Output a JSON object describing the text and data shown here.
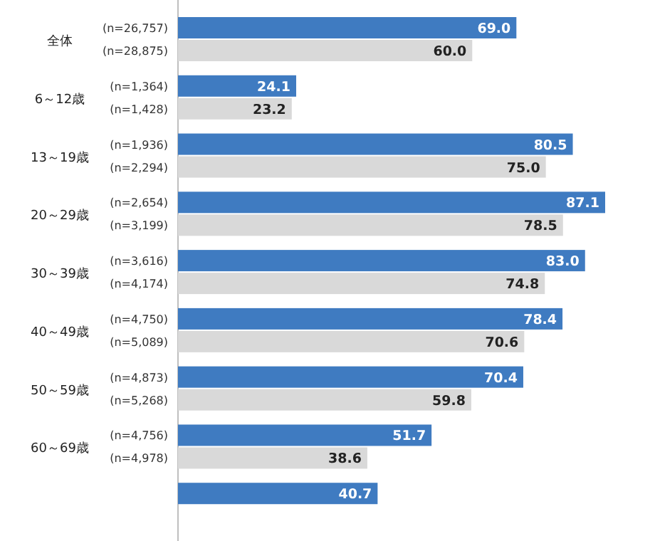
{
  "chart_data": {
    "type": "bar",
    "orientation": "horizontal",
    "categories": [
      "全体",
      "6～12歳",
      "13～19歳",
      "20～29歳",
      "30～39歳",
      "40～49歳",
      "50～59歳",
      "60～69歳",
      null
    ],
    "series": [
      {
        "color": "#3f7bc1",
        "values": [
          69.0,
          24.1,
          80.5,
          87.1,
          83.0,
          78.4,
          70.4,
          51.7,
          40.7
        ],
        "value_labels": [
          "69.0",
          "24.1",
          "80.5",
          "87.1",
          "83.0",
          "78.4",
          "70.4",
          "51.7",
          "40.7"
        ]
      },
      {
        "color": "#d9d9d9",
        "values": [
          60.0,
          23.2,
          75.0,
          78.5,
          74.8,
          70.6,
          59.8,
          38.6,
          null
        ],
        "value_labels": [
          "60.0",
          "23.2",
          "75.0",
          "78.5",
          "74.8",
          "70.6",
          "59.8",
          "38.6",
          null
        ]
      }
    ],
    "annotations": [
      "(n=26,757)",
      "(n=28,875)",
      "(n=1,364)",
      "(n=1,428)",
      "(n=1,936)",
      "(n=2,294)",
      "(n=2,654)",
      "(n=3,199)",
      "(n=3,616)",
      "(n=4,174)",
      "(n=4,750)",
      "(n=5,089)",
      "(n=4,873)",
      "(n=5,268)",
      "(n=4,756)",
      "(n=4,978)"
    ]
  }
}
